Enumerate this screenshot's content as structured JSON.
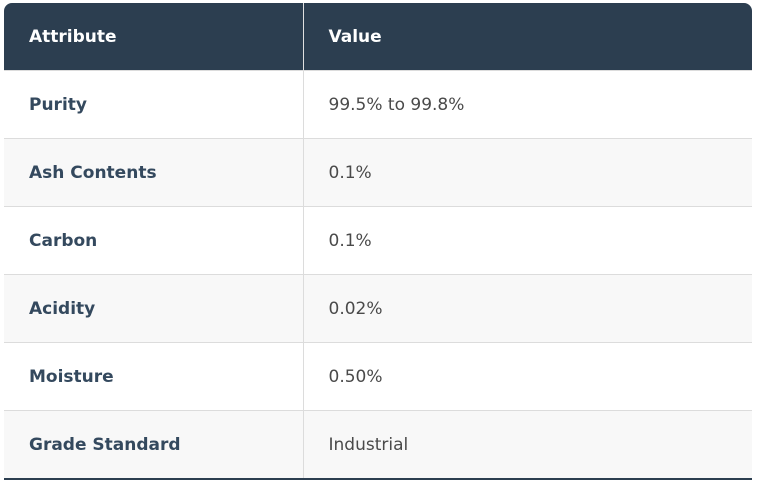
{
  "table": {
    "header": [
      "Attribute",
      "Value"
    ],
    "rows": [
      [
        "Purity",
        "99.5% to 99.8%"
      ],
      [
        "Ash Contents",
        "0.1%"
      ],
      [
        "Carbon",
        "0.1%"
      ],
      [
        "Acidity",
        "0.02%"
      ],
      [
        "Moisture",
        "0.50%"
      ],
      [
        "Grade Standard",
        "Industrial"
      ]
    ]
  }
}
